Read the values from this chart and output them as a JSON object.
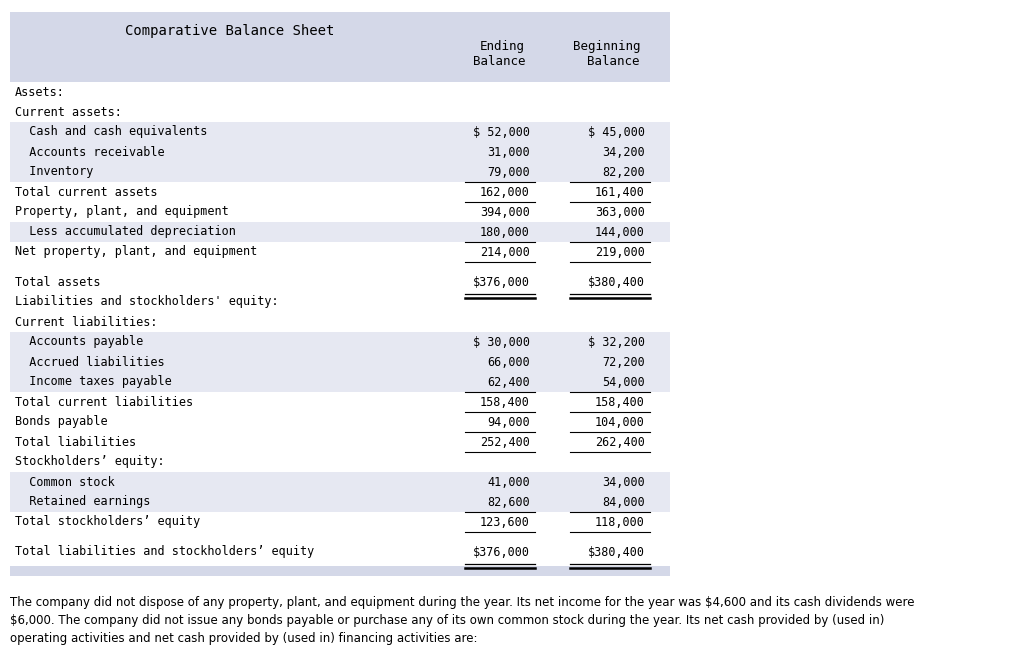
{
  "title": "Comparative Balance Sheet",
  "header_bg": "#d4d8e8",
  "row_alt_bg": "#e6e8f2",
  "footer_text": "The company did not dispose of any property, plant, and equipment during the year. Its net income for the year was $4,600 and its cash dividends were\n$6,000. The company did not issue any bonds payable or purchase any of its own common stock during the year. Its net cash provided by (used in)\noperating activities and net cash provided by (used in) financing activities are:",
  "rows": [
    {
      "label": "Assets:",
      "ending": "",
      "beginning": "",
      "indent": 0,
      "shaded": false,
      "line_below": false,
      "double_below": false,
      "extra_space_above": false
    },
    {
      "label": "Current assets:",
      "ending": "",
      "beginning": "",
      "indent": 0,
      "shaded": false,
      "line_below": false,
      "double_below": false,
      "extra_space_above": false
    },
    {
      "label": "  Cash and cash equivalents",
      "ending": "$ 52,000",
      "beginning": "$ 45,000",
      "indent": 0,
      "shaded": true,
      "line_below": false,
      "double_below": false,
      "extra_space_above": false
    },
    {
      "label": "  Accounts receivable",
      "ending": "31,000",
      "beginning": "34,200",
      "indent": 0,
      "shaded": true,
      "line_below": false,
      "double_below": false,
      "extra_space_above": false
    },
    {
      "label": "  Inventory",
      "ending": "79,000",
      "beginning": "82,200",
      "indent": 0,
      "shaded": true,
      "line_below": true,
      "double_below": false,
      "extra_space_above": false
    },
    {
      "label": "Total current assets",
      "ending": "162,000",
      "beginning": "161,400",
      "indent": 0,
      "shaded": false,
      "line_below": true,
      "double_below": false,
      "extra_space_above": false
    },
    {
      "label": "Property, plant, and equipment",
      "ending": "394,000",
      "beginning": "363,000",
      "indent": 0,
      "shaded": false,
      "line_below": false,
      "double_below": false,
      "extra_space_above": false
    },
    {
      "label": "  Less accumulated depreciation",
      "ending": "180,000",
      "beginning": "144,000",
      "indent": 0,
      "shaded": true,
      "line_below": true,
      "double_below": false,
      "extra_space_above": false
    },
    {
      "label": "Net property, plant, and equipment",
      "ending": "214,000",
      "beginning": "219,000",
      "indent": 0,
      "shaded": false,
      "line_below": true,
      "double_below": false,
      "extra_space_above": false
    },
    {
      "label": "Total assets",
      "ending": "$376,000",
      "beginning": "$380,400",
      "indent": 0,
      "shaded": false,
      "line_below": false,
      "double_below": true,
      "extra_space_above": true
    },
    {
      "label": "Liabilities and stockholders' equity:",
      "ending": "",
      "beginning": "",
      "indent": 0,
      "shaded": false,
      "line_below": false,
      "double_below": false,
      "extra_space_above": false
    },
    {
      "label": "Current liabilities:",
      "ending": "",
      "beginning": "",
      "indent": 0,
      "shaded": false,
      "line_below": false,
      "double_below": false,
      "extra_space_above": false
    },
    {
      "label": "  Accounts payable",
      "ending": "$ 30,000",
      "beginning": "$ 32,200",
      "indent": 0,
      "shaded": true,
      "line_below": false,
      "double_below": false,
      "extra_space_above": false
    },
    {
      "label": "  Accrued liabilities",
      "ending": "66,000",
      "beginning": "72,200",
      "indent": 0,
      "shaded": true,
      "line_below": false,
      "double_below": false,
      "extra_space_above": false
    },
    {
      "label": "  Income taxes payable",
      "ending": "62,400",
      "beginning": "54,000",
      "indent": 0,
      "shaded": true,
      "line_below": true,
      "double_below": false,
      "extra_space_above": false
    },
    {
      "label": "Total current liabilities",
      "ending": "158,400",
      "beginning": "158,400",
      "indent": 0,
      "shaded": false,
      "line_below": true,
      "double_below": false,
      "extra_space_above": false
    },
    {
      "label": "Bonds payable",
      "ending": "94,000",
      "beginning": "104,000",
      "indent": 0,
      "shaded": false,
      "line_below": true,
      "double_below": false,
      "extra_space_above": false
    },
    {
      "label": "Total liabilities",
      "ending": "252,400",
      "beginning": "262,400",
      "indent": 0,
      "shaded": false,
      "line_below": true,
      "double_below": false,
      "extra_space_above": false
    },
    {
      "label": "Stockholders’ equity:",
      "ending": "",
      "beginning": "",
      "indent": 0,
      "shaded": false,
      "line_below": false,
      "double_below": false,
      "extra_space_above": false
    },
    {
      "label": "  Common stock",
      "ending": "41,000",
      "beginning": "34,000",
      "indent": 0,
      "shaded": true,
      "line_below": false,
      "double_below": false,
      "extra_space_above": false
    },
    {
      "label": "  Retained earnings",
      "ending": "82,600",
      "beginning": "84,000",
      "indent": 0,
      "shaded": true,
      "line_below": true,
      "double_below": false,
      "extra_space_above": false
    },
    {
      "label": "Total stockholders’ equity",
      "ending": "123,600",
      "beginning": "118,000",
      "indent": 0,
      "shaded": false,
      "line_below": true,
      "double_below": false,
      "extra_space_above": false
    },
    {
      "label": "Total liabilities and stockholders’ equity",
      "ending": "$376,000",
      "beginning": "$380,400",
      "indent": 0,
      "shaded": false,
      "line_below": false,
      "double_below": true,
      "extra_space_above": true
    }
  ]
}
